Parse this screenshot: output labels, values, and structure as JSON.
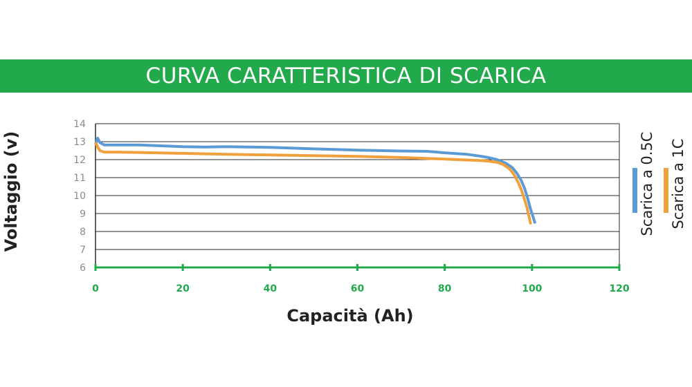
{
  "banner": {
    "title": "CURVA CARATTERISTICA DI SCARICA",
    "color": "#22a94b"
  },
  "chart_data": {
    "type": "line",
    "title": "",
    "xlabel": "Capacità (Ah)",
    "ylabel": "Voltaggio (v)",
    "xlim": [
      0,
      120
    ],
    "ylim": [
      6,
      14
    ],
    "xticks": [
      0,
      20,
      40,
      60,
      80,
      100,
      120
    ],
    "yticks": [
      6,
      7,
      8,
      9,
      10,
      11,
      12,
      13,
      14
    ],
    "grid": "horizontal",
    "legend_placement": "right",
    "series": [
      {
        "name": "Scarica a 0.5C",
        "color": "#5b9bd5",
        "x": [
          0,
          0.5,
          1,
          2,
          5,
          10,
          20,
          25,
          30,
          40,
          50,
          60,
          70,
          76,
          80,
          85,
          88,
          90,
          92,
          94,
          95.5,
          96.5,
          97.5,
          98.3,
          99,
          99.6,
          100.2,
          100.7
        ],
        "y": [
          12.85,
          13.2,
          12.95,
          12.82,
          12.82,
          12.82,
          12.72,
          12.7,
          12.72,
          12.68,
          12.6,
          12.53,
          12.48,
          12.46,
          12.38,
          12.3,
          12.2,
          12.12,
          12.0,
          11.8,
          11.55,
          11.25,
          10.85,
          10.4,
          9.85,
          9.3,
          8.85,
          8.45
        ]
      },
      {
        "name": "Scarica a 1C",
        "color": "#f0a03c",
        "x": [
          0,
          0.5,
          1,
          2,
          5,
          10,
          20,
          30,
          40,
          50,
          60,
          70,
          78,
          85,
          88,
          90,
          92,
          93.5,
          94.8,
          95.8,
          96.7,
          97.5,
          98.2,
          98.8,
          99.3,
          99.7
        ],
        "y": [
          12.95,
          12.7,
          12.5,
          12.42,
          12.42,
          12.4,
          12.35,
          12.3,
          12.26,
          12.22,
          12.18,
          12.12,
          12.05,
          11.98,
          11.95,
          11.92,
          11.85,
          11.72,
          11.5,
          11.2,
          10.8,
          10.35,
          9.85,
          9.35,
          8.85,
          8.4
        ]
      }
    ]
  }
}
